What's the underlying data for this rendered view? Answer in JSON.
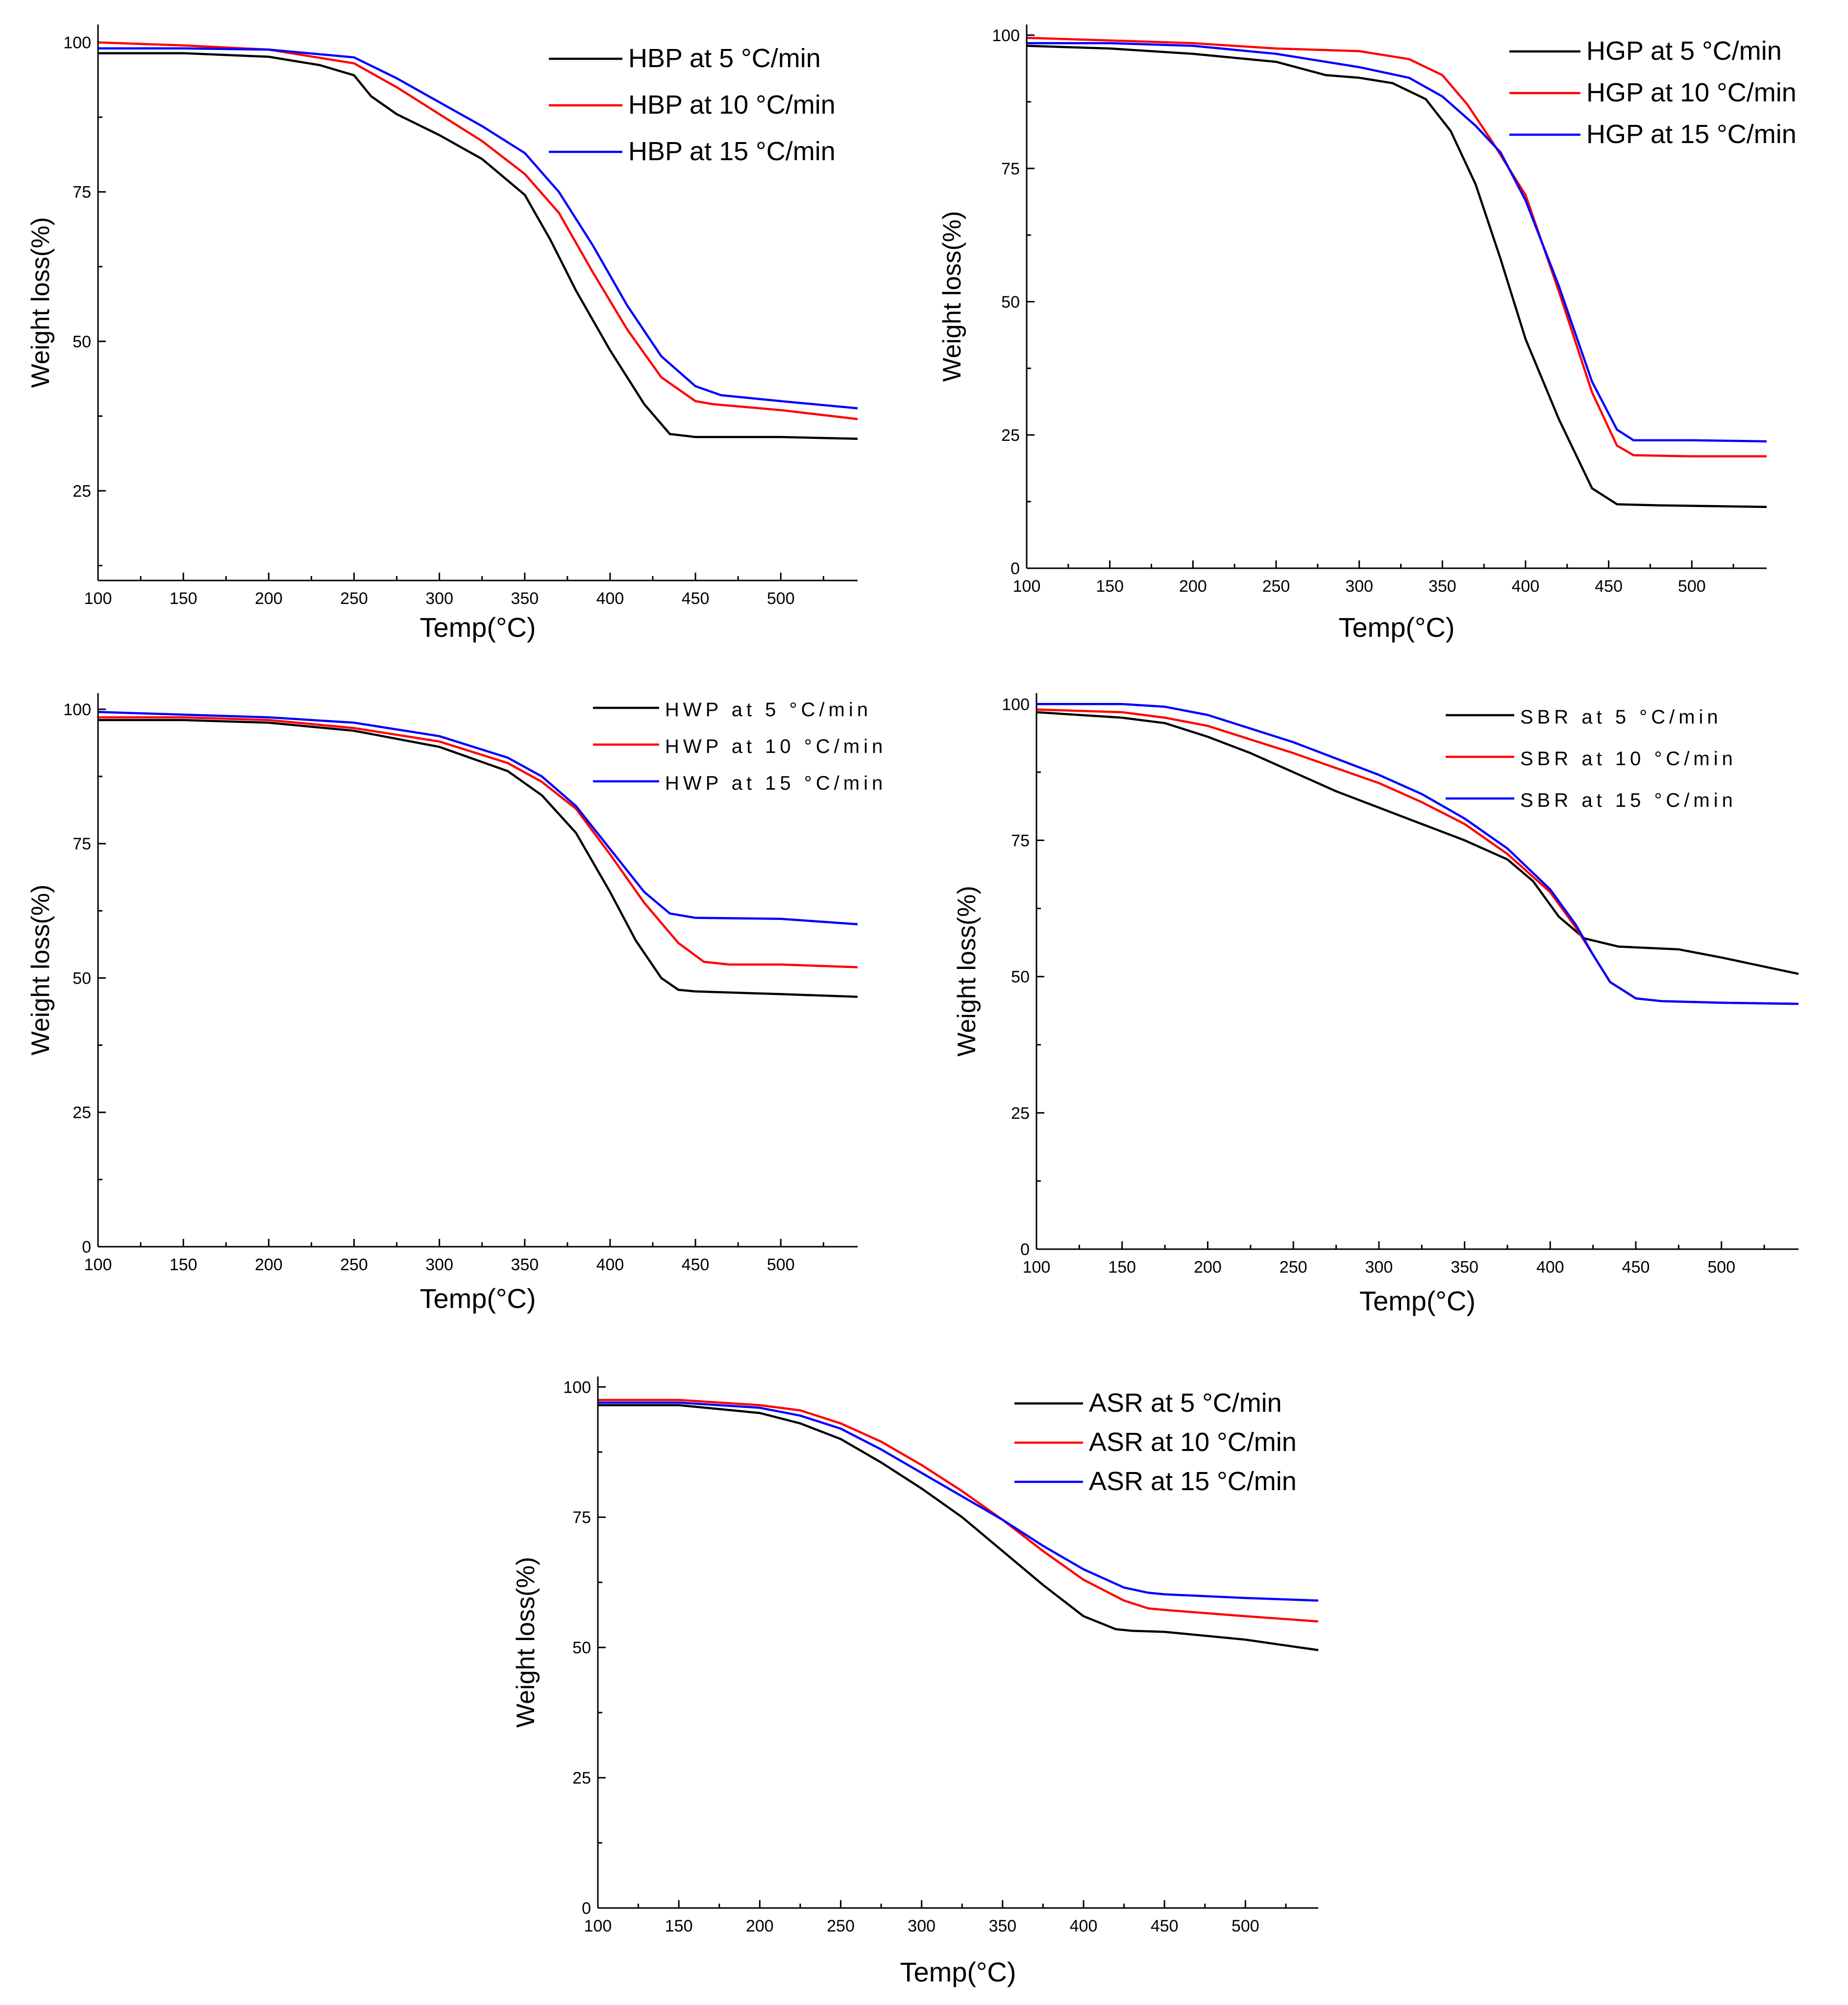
{
  "chart_data": [
    {
      "id": "hbp",
      "type": "line",
      "xlabel": "Temp(°C)",
      "ylabel": "Weight loss(%)",
      "xlim": [
        100,
        545
      ],
      "ylim": [
        10,
        103
      ],
      "xticks": [
        100,
        150,
        200,
        250,
        300,
        350,
        400,
        450,
        500
      ],
      "yticks": [
        25,
        50,
        75,
        100
      ],
      "legend_spaced": false,
      "series": [
        {
          "name": "HBP at 5 °C/min",
          "color": "#000000",
          "x": [
            100,
            150,
            200,
            230,
            250,
            260,
            275,
            300,
            325,
            350,
            365,
            380,
            400,
            420,
            435,
            450,
            500,
            545
          ],
          "y": [
            98.2,
            98.2,
            97.6,
            96.2,
            94.5,
            91,
            88,
            84.5,
            80.5,
            74.5,
            67,
            58.5,
            48.5,
            39.5,
            34.5,
            34,
            34,
            33.7
          ]
        },
        {
          "name": "HBP at 10 °C/min",
          "color": "#ff0000",
          "x": [
            100,
            150,
            200,
            250,
            275,
            300,
            325,
            350,
            370,
            390,
            410,
            430,
            450,
            460,
            500,
            545
          ],
          "y": [
            100,
            99.5,
            98.8,
            96.5,
            92.5,
            88,
            83.5,
            78,
            71.5,
            61.5,
            52,
            44,
            40,
            39.5,
            38.5,
            37
          ]
        },
        {
          "name": "HBP at 15 °C/min",
          "color": "#0000ff",
          "x": [
            100,
            150,
            200,
            250,
            275,
            300,
            325,
            350,
            370,
            390,
            410,
            430,
            450,
            465,
            500,
            545
          ],
          "y": [
            99,
            99,
            98.8,
            97.5,
            94,
            90,
            86,
            81.5,
            75,
            66,
            56,
            47.5,
            42.5,
            41,
            40,
            38.8
          ]
        }
      ]
    },
    {
      "id": "hgp",
      "type": "line",
      "xlabel": "Temp(°C)",
      "ylabel": "Weight loss(%)",
      "xlim": [
        100,
        545
      ],
      "ylim": [
        0,
        102
      ],
      "xticks": [
        100,
        150,
        200,
        250,
        300,
        350,
        400,
        450,
        500
      ],
      "yticks": [
        0,
        25,
        50,
        75,
        100
      ],
      "legend_spaced": false,
      "series": [
        {
          "name": "HGP at 5 °C/min",
          "color": "#000000",
          "x": [
            100,
            150,
            200,
            250,
            280,
            300,
            320,
            340,
            355,
            370,
            385,
            400,
            420,
            440,
            455,
            480,
            545
          ],
          "y": [
            98,
            97.5,
            96.5,
            95,
            92.5,
            92,
            91,
            88,
            82,
            72,
            58,
            43,
            28,
            15,
            12,
            11.8,
            11.5
          ]
        },
        {
          "name": "HGP at 10 °C/min",
          "color": "#ff0000",
          "x": [
            100,
            150,
            200,
            250,
            300,
            330,
            350,
            365,
            380,
            400,
            420,
            440,
            455,
            465,
            500,
            545
          ],
          "y": [
            99.5,
            99,
            98.5,
            97.5,
            97,
            95.5,
            92.5,
            87,
            80,
            70,
            52,
            33,
            23,
            21.2,
            21,
            21
          ]
        },
        {
          "name": "HGP at 15 °C/min",
          "color": "#0000ff",
          "x": [
            100,
            150,
            200,
            250,
            300,
            330,
            350,
            370,
            385,
            400,
            420,
            440,
            455,
            465,
            500,
            545
          ],
          "y": [
            98.5,
            98.5,
            98,
            96.5,
            94,
            92,
            88.5,
            83,
            78,
            69,
            53,
            35,
            26,
            24,
            24,
            23.8
          ]
        }
      ]
    },
    {
      "id": "hwp",
      "type": "line",
      "xlabel": "Temp(°C)",
      "ylabel": "Weight loss(%)",
      "xlim": [
        100,
        545
      ],
      "ylim": [
        0,
        103
      ],
      "xticks": [
        100,
        150,
        200,
        250,
        300,
        350,
        400,
        450,
        500
      ],
      "yticks": [
        0,
        25,
        50,
        75,
        100
      ],
      "legend_spaced": true,
      "series": [
        {
          "name": "HWP at 5 °C/min",
          "color": "#000000",
          "x": [
            100,
            150,
            200,
            250,
            300,
            340,
            360,
            380,
            400,
            415,
            430,
            440,
            450,
            500,
            545
          ],
          "y": [
            98,
            98,
            97.5,
            96,
            93,
            88.5,
            84,
            77,
            66,
            57,
            50,
            47.8,
            47.5,
            47,
            46.5
          ]
        },
        {
          "name": "HWP at 10 °C/min",
          "color": "#ff0000",
          "x": [
            100,
            150,
            200,
            250,
            300,
            340,
            360,
            380,
            400,
            420,
            440,
            455,
            470,
            500,
            545
          ],
          "y": [
            98.5,
            98.5,
            98,
            96.5,
            94,
            90,
            86.5,
            81.5,
            73,
            64,
            56.5,
            53,
            52.5,
            52.5,
            52
          ]
        },
        {
          "name": "HWP at 15 °C/min",
          "color": "#0000ff",
          "x": [
            100,
            150,
            200,
            250,
            300,
            340,
            360,
            380,
            400,
            420,
            435,
            450,
            500,
            545
          ],
          "y": [
            99.5,
            99,
            98.5,
            97.5,
            95,
            91,
            87.5,
            82,
            74,
            66,
            62,
            61.2,
            61,
            60
          ]
        }
      ]
    },
    {
      "id": "sbr",
      "type": "line",
      "xlabel": "Temp(°C)",
      "ylabel": "Weight loss(%)",
      "xlim": [
        100,
        545
      ],
      "ylim": [
        0,
        102
      ],
      "xticks": [
        100,
        150,
        200,
        250,
        300,
        350,
        400,
        450,
        500
      ],
      "yticks": [
        0,
        25,
        50,
        75,
        100
      ],
      "legend_spaced": true,
      "series": [
        {
          "name": "SBR at 5 °C/min",
          "color": "#000000",
          "x": [
            100,
            150,
            175,
            200,
            225,
            250,
            275,
            300,
            325,
            350,
            375,
            390,
            405,
            420,
            440,
            475,
            500,
            545
          ],
          "y": [
            98.5,
            97.5,
            96.5,
            94,
            91,
            87.5,
            84,
            81,
            78,
            75,
            71.5,
            67.5,
            61,
            57,
            55.5,
            55,
            53.5,
            50.5
          ]
        },
        {
          "name": "SBR at 10 °C/min",
          "color": "#ff0000",
          "x": [
            100,
            150,
            175,
            200,
            250,
            300,
            325,
            350,
            375,
            400,
            415,
            425,
            435,
            450,
            465,
            500,
            545
          ],
          "y": [
            99,
            98.5,
            97.5,
            96,
            91,
            85.5,
            82,
            78,
            72.5,
            65.5,
            59,
            54,
            49,
            46,
            45.5,
            45.2,
            45
          ]
        },
        {
          "name": "SBR at 15 °C/min",
          "color": "#0000ff",
          "x": [
            100,
            150,
            175,
            200,
            250,
            300,
            325,
            350,
            375,
            400,
            415,
            425,
            435,
            450,
            465,
            500,
            545
          ],
          "y": [
            100,
            100,
            99.5,
            98,
            93,
            87,
            83.5,
            79,
            73.5,
            66,
            59.5,
            54,
            49,
            46,
            45.5,
            45.2,
            45
          ]
        }
      ]
    },
    {
      "id": "asr",
      "type": "line",
      "xlabel": "Temp(°C)",
      "ylabel": "Weight loss(%)",
      "xlim": [
        100,
        545
      ],
      "ylim": [
        0,
        102
      ],
      "xticks": [
        100,
        150,
        200,
        250,
        300,
        350,
        400,
        450,
        500
      ],
      "yticks": [
        0,
        25,
        50,
        75,
        100
      ],
      "legend_spaced": false,
      "series": [
        {
          "name": "ASR at 5 °C/min",
          "color": "#000000",
          "x": [
            100,
            150,
            200,
            225,
            250,
            275,
            300,
            325,
            350,
            375,
            400,
            420,
            430,
            450,
            500,
            545
          ],
          "y": [
            96.5,
            96.5,
            95,
            93,
            90,
            85.5,
            80.5,
            75,
            68.5,
            62,
            56,
            53.5,
            53.2,
            53,
            51.5,
            49.5
          ]
        },
        {
          "name": "ASR at 10 °C/min",
          "color": "#ff0000",
          "x": [
            100,
            150,
            200,
            225,
            250,
            275,
            300,
            325,
            350,
            375,
            400,
            425,
            440,
            450,
            500,
            545
          ],
          "y": [
            97.5,
            97.5,
            96.5,
            95.5,
            93,
            89.5,
            85,
            80,
            74.5,
            68.5,
            63,
            59,
            57.5,
            57.2,
            56,
            55
          ]
        },
        {
          "name": "ASR at 15 °C/min",
          "color": "#0000ff",
          "x": [
            100,
            150,
            200,
            225,
            250,
            275,
            300,
            325,
            350,
            375,
            400,
            425,
            440,
            450,
            500,
            545
          ],
          "y": [
            97,
            97,
            96,
            94.5,
            92,
            88,
            83.5,
            79,
            74.5,
            69.5,
            65,
            61.5,
            60.5,
            60.2,
            59.5,
            59
          ]
        }
      ]
    }
  ]
}
